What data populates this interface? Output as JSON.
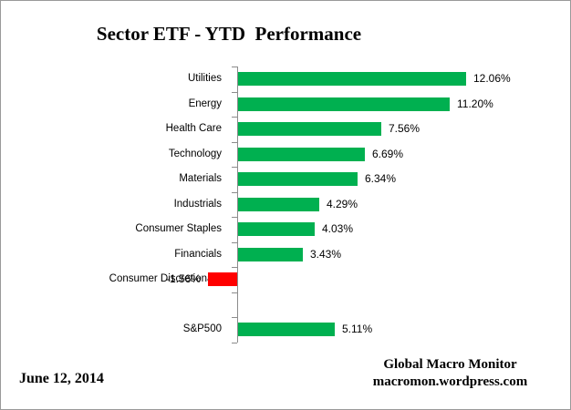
{
  "title": "Sector ETF - YTD  Performance",
  "chart_data": {
    "type": "bar",
    "orientation": "horizontal",
    "title": "Sector ETF - YTD  Performance",
    "categories": [
      "Utilities",
      "Energy",
      "Health Care",
      "Technology",
      "Materials",
      "Industrials",
      "Consumer Staples",
      "Financials",
      "Consumer Discretionary",
      "",
      "S&P500"
    ],
    "values": [
      12.06,
      11.2,
      7.56,
      6.69,
      6.34,
      4.29,
      4.03,
      3.43,
      -1.56,
      null,
      5.11
    ],
    "rows": [
      {
        "label": "Utilities",
        "value": 12.06,
        "value_label": "12.06%"
      },
      {
        "label": "Energy",
        "value": 11.2,
        "value_label": "11.20%"
      },
      {
        "label": "Health Care",
        "value": 7.56,
        "value_label": "7.56%"
      },
      {
        "label": "Technology",
        "value": 6.69,
        "value_label": "6.69%"
      },
      {
        "label": "Materials",
        "value": 6.34,
        "value_label": "6.34%"
      },
      {
        "label": "Industrials",
        "value": 4.29,
        "value_label": "4.29%"
      },
      {
        "label": "Consumer Staples",
        "value": 4.03,
        "value_label": "4.03%"
      },
      {
        "label": "Financials",
        "value": 3.43,
        "value_label": "3.43%"
      },
      {
        "label": "Consumer Discretionary",
        "value": -1.56,
        "value_label": "-1.56%"
      },
      {
        "label": "",
        "value": null,
        "value_label": ""
      },
      {
        "label": "S&P500",
        "value": 5.11,
        "value_label": "5.11%"
      }
    ],
    "colors": {
      "positive": "#00B050",
      "negative": "#FF0000",
      "axis": "#8C8C8C"
    },
    "xlim": [
      -2,
      13
    ],
    "grid": false,
    "legend": false
  },
  "footer": {
    "date": "June 12, 2014",
    "credit_line1": "Global Macro Monitor",
    "credit_line2": "macromon.wordpress.com"
  }
}
